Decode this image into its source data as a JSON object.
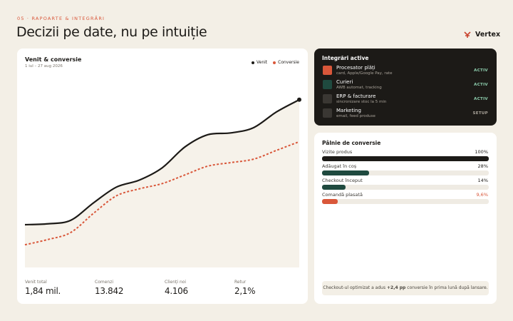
{
  "header": {
    "eyebrow": "05 · RAPOARTE & INTEGRĂRI",
    "title": "Decizii pe date, nu pe intuiție",
    "brand": "Vertex"
  },
  "chart_data": {
    "type": "line",
    "title": "Venit & conversie",
    "subtitle": "1 iul – 27 aug 2026",
    "categories": [
      null,
      null,
      null,
      null,
      null,
      null,
      null,
      null,
      null,
      null,
      null,
      null,
      null
    ],
    "series": [
      {
        "name": "Venit",
        "color": "#1c1a17",
        "values": [
          24.5,
          25,
          27,
          37,
          46,
          50,
          57,
          69,
          76,
          77,
          80,
          89,
          96
        ]
      },
      {
        "name": "Conversie",
        "color": "#d9573a",
        "values": [
          13,
          16,
          20,
          31,
          41,
          45,
          48,
          53,
          58,
          60,
          62,
          67,
          72
        ]
      }
    ],
    "ylim": [
      0,
      100
    ],
    "grid": false,
    "legend": "top-right"
  },
  "stats": [
    {
      "label": "Venit total",
      "value": "1,84 mil."
    },
    {
      "label": "Comenzi",
      "value": "13.842"
    },
    {
      "label": "Clienți noi",
      "value": "4.106"
    },
    {
      "label": "Retur",
      "value": "2,1%"
    }
  ],
  "integrations": {
    "title": "Integrări active",
    "items": [
      {
        "name": "Procesator plăți",
        "desc": "card, Apple/Google Pay, rate",
        "status": "ACTIV",
        "color": "#d9573a"
      },
      {
        "name": "Curieri",
        "desc": "AWB automat, tracking",
        "status": "ACTIV",
        "color": "#1f4a3f"
      },
      {
        "name": "ERP & facturare",
        "desc": "sincronizare stoc la 5 min",
        "status": "ACTIV",
        "color": "#3a3733"
      },
      {
        "name": "Marketing",
        "desc": "email, feed produse",
        "status": "SETUP",
        "color": "#3a3733"
      }
    ]
  },
  "funnel": {
    "title": "Pâlnie de conversie",
    "steps": [
      {
        "label": "Vizite produs",
        "value": 100,
        "value_label": "100%",
        "color": "#1c1a17"
      },
      {
        "label": "Adăugat în coș",
        "value": 28,
        "value_label": "28%",
        "color": "#1f4a3f"
      },
      {
        "label": "Checkout început",
        "value": 14,
        "value_label": "14%",
        "color": "#1f4a3f"
      },
      {
        "label": "Comandă plasată",
        "value": 9.6,
        "value_label": "9,6%",
        "color": "#d9573a"
      }
    ],
    "note": {
      "before": "Checkout-ul optimizat a adus",
      "bold": "+2,4 pp",
      "after": "conversie în prima lună după lansare."
    }
  }
}
